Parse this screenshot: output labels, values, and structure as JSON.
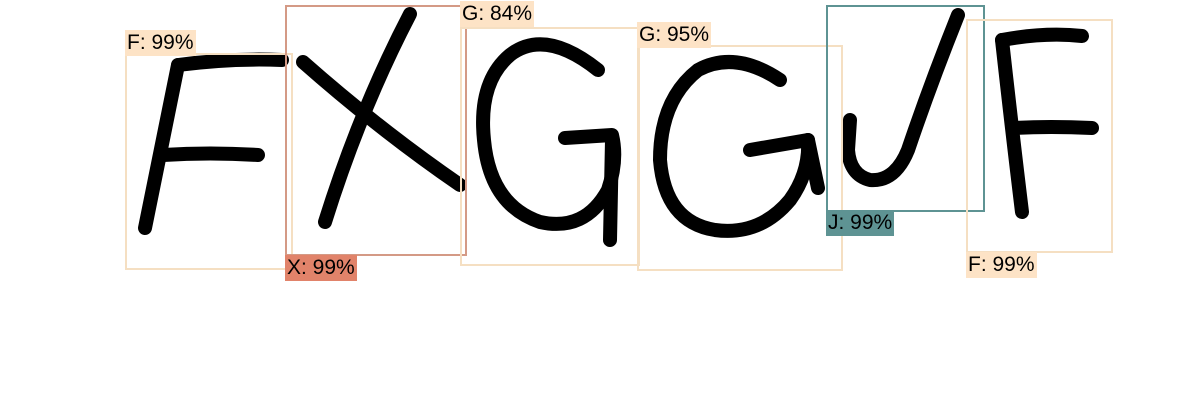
{
  "detections": [
    {
      "letter": "F",
      "label": "F: 99%",
      "box_color": "#f5dfc2",
      "label_bg": "#fde3c6"
    },
    {
      "letter": "X",
      "label": "X: 99%",
      "box_color": "#d49a86",
      "label_bg": "#e1836a"
    },
    {
      "letter": "G",
      "label": "G: 84%",
      "box_color": "#f5dfc2",
      "label_bg": "#fde3c6"
    },
    {
      "letter": "G",
      "label": "G: 95%",
      "box_color": "#f5dfc2",
      "label_bg": "#fde3c6"
    },
    {
      "letter": "J",
      "label": "J: 99%",
      "box_color": "#5e9393",
      "label_bg": "#5e9393"
    },
    {
      "letter": "F",
      "label": "F: 99%",
      "box_color": "#f5dfc2",
      "label_bg": "#fde3c6"
    }
  ]
}
